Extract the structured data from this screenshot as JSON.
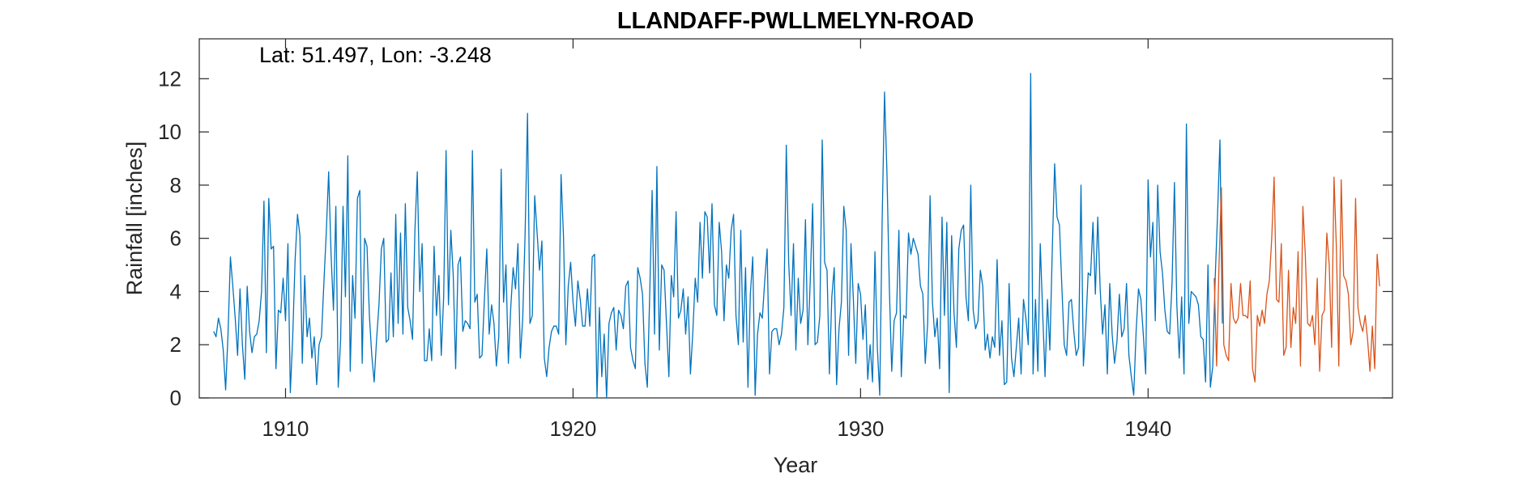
{
  "chart_data": {
    "type": "line",
    "title": "LLANDAFF-PWLLMELYN-ROAD",
    "annotation": "Lat: 51.497, Lon: -3.248",
    "xlabel": "Year",
    "ylabel": "Rainfall [inches]",
    "xlim": [
      1907.0,
      1948.5
    ],
    "ylim": [
      0,
      13.5
    ],
    "xticks": [
      1910,
      1920,
      1930,
      1940
    ],
    "yticks": [
      0,
      2,
      4,
      6,
      8,
      10,
      12
    ],
    "grid": false,
    "series": [
      {
        "color": "#0072BD",
        "x_start": 1907.5,
        "x_step": 0.083333,
        "values": [
          2.5,
          2.3,
          3.0,
          2.6,
          1.8,
          0.3,
          2.4,
          5.3,
          4.2,
          3.0,
          1.6,
          4.1,
          2.0,
          0.7,
          4.2,
          2.5,
          1.7,
          2.3,
          2.4,
          2.9,
          4.0,
          7.4,
          1.7,
          7.5,
          5.6,
          5.7,
          1.1,
          3.3,
          3.2,
          4.5,
          2.9,
          5.8,
          0.2,
          2.3,
          5.2,
          6.9,
          6.1,
          1.3,
          4.6,
          2.3,
          3.0,
          1.5,
          2.3,
          0.5,
          2.0,
          2.3,
          4.3,
          6.2,
          8.5,
          5.4,
          3.3,
          7.2,
          0.4,
          2.2,
          7.2,
          3.8,
          9.1,
          1.0,
          4.6,
          3.0,
          7.5,
          7.8,
          1.3,
          6.0,
          5.7,
          3.1,
          1.6,
          0.6,
          2.2,
          3.5,
          5.6,
          6.0,
          2.1,
          2.2,
          4.7,
          2.3,
          6.9,
          2.8,
          6.2,
          2.4,
          7.3,
          3.4,
          2.9,
          2.2,
          6.3,
          8.5,
          4.0,
          5.8,
          1.4,
          1.4,
          2.6,
          1.4,
          5.7,
          3.1,
          4.6,
          1.6,
          3.8,
          9.3,
          3.5,
          6.3,
          4.6,
          1.1,
          5.0,
          5.3,
          2.5,
          2.9,
          2.8,
          2.6,
          9.3,
          3.6,
          3.9,
          1.5,
          1.6,
          3.7,
          5.6,
          2.4,
          3.5,
          2.8,
          1.2,
          2.3,
          8.6,
          3.6,
          5.0,
          1.3,
          3.4,
          4.9,
          4.1,
          5.8,
          1.5,
          3.0,
          6.2,
          10.7,
          2.8,
          3.1,
          7.6,
          6.2,
          4.8,
          5.9,
          1.5,
          0.8,
          1.9,
          2.5,
          2.7,
          2.7,
          2.4,
          8.4,
          6.1,
          2.0,
          4.2,
          5.1,
          3.6,
          2.7,
          4.4,
          3.7,
          2.7,
          2.7,
          4.1,
          2.7,
          5.3,
          5.4,
          0.0,
          3.4,
          0.8,
          2.4,
          0.0,
          2.8,
          3.2,
          3.4,
          1.8,
          3.3,
          3.1,
          2.6,
          4.2,
          4.4,
          1.9,
          1.4,
          1.1,
          4.9,
          4.5,
          3.9,
          1.3,
          0.4,
          3.9,
          7.8,
          2.4,
          8.7,
          1.8,
          5.0,
          4.8,
          2.8,
          0.8,
          4.6,
          3.8,
          7.0,
          3.0,
          3.3,
          4.1,
          2.4,
          3.8,
          0.9,
          2.5,
          4.5,
          3.6,
          6.6,
          4.5,
          7.0,
          6.8,
          4.7,
          7.3,
          3.5,
          3.1,
          6.6,
          5.5,
          2.9,
          5.0,
          4.5,
          6.3,
          6.9,
          3.1,
          2.0,
          6.3,
          2.1,
          4.9,
          0.4,
          3.9,
          5.3,
          0.1,
          2.4,
          3.2,
          3.0,
          4.4,
          5.6,
          0.9,
          2.5,
          2.6,
          2.6,
          2.0,
          2.4,
          3.4,
          9.5,
          5.1,
          3.1,
          5.8,
          1.8,
          4.5,
          2.8,
          3.3,
          6.7,
          2.0,
          4.4,
          7.3,
          2.0,
          2.1,
          3.1,
          9.7,
          5.1,
          4.8,
          0.9,
          3.8,
          4.9,
          0.5,
          2.6,
          3.6,
          7.2,
          6.3,
          1.6,
          5.8,
          3.7,
          1.3,
          4.3,
          3.9,
          2.2,
          3.5,
          0.7,
          2.0,
          0.6,
          5.5,
          1.9,
          0.1,
          6.6,
          11.5,
          8.5,
          4.2,
          1.0,
          2.9,
          3.2,
          6.3,
          0.8,
          3.1,
          3.0,
          6.2,
          5.4,
          6.0,
          5.7,
          5.4,
          4.2,
          3.9,
          1.3,
          2.8,
          7.6,
          3.6,
          2.3,
          3.0,
          1.1,
          6.8,
          3.1,
          6.6,
          0.2,
          6.1,
          3.2,
          1.9,
          5.6,
          6.3,
          6.5,
          3.8,
          2.9,
          8.0,
          3.3,
          2.6,
          2.9,
          4.8,
          4.2,
          1.8,
          2.4,
          1.5,
          2.3,
          1.9,
          5.2,
          1.6,
          2.9,
          0.5,
          0.6,
          4.3,
          1.5,
          0.8,
          1.9,
          3.0,
          0.9,
          3.7,
          3.0,
          2.0,
          12.2,
          0.9,
          3.7,
          1.0,
          5.8,
          3.2,
          0.8,
          3.7,
          1.8,
          5.5,
          8.8,
          6.8,
          6.5,
          4.2,
          2.0,
          1.6,
          3.6,
          3.7,
          2.5,
          1.6,
          1.9,
          8.0,
          1.2,
          2.7,
          4.7,
          4.6,
          6.6,
          3.9,
          6.8,
          4.1,
          2.4,
          3.5,
          0.9,
          4.3,
          2.4,
          1.3,
          2.1,
          3.9,
          2.3,
          2.6,
          4.3,
          1.6,
          0.8,
          0.1,
          2.5,
          4.1,
          3.7,
          2.4,
          0.9,
          8.2,
          5.3,
          6.6,
          2.9,
          8.0,
          5.5,
          4.7,
          3.3,
          2.5,
          2.4,
          4.3,
          8.1,
          3.5,
          1.5,
          3.8,
          0.9,
          10.3,
          2.8,
          4.0,
          3.9,
          3.8,
          3.5,
          2.3,
          2.2,
          0.6,
          5.0,
          0.4,
          1.2,
          4.5,
          6.9,
          9.7,
          2.8
        ]
      },
      {
        "color": "#D95319",
        "x_start": 1942.3,
        "x_step": 0.083333,
        "values": [
          4.5,
          1.2,
          5.0,
          7.9,
          2.0,
          1.6,
          1.4,
          4.3,
          3.0,
          2.8,
          3.0,
          4.3,
          3.1,
          3.1,
          3.0,
          4.4,
          1.1,
          0.6,
          3.1,
          2.7,
          3.3,
          2.8,
          3.9,
          4.4,
          6.0,
          8.3,
          3.7,
          3.6,
          5.8,
          1.6,
          1.9,
          4.8,
          1.9,
          3.4,
          2.8,
          5.5,
          1.2,
          7.2,
          5.4,
          2.8,
          2.7,
          3.1,
          2.0,
          4.5,
          1.0,
          3.1,
          3.3,
          6.2,
          5.0,
          1.9,
          8.3,
          5.6,
          1.2,
          8.2,
          4.6,
          4.4,
          3.9,
          2.0,
          2.5,
          7.5,
          3.4,
          2.8,
          2.5,
          3.1,
          2.2,
          1.0,
          2.7,
          1.1,
          5.4,
          4.2
        ]
      }
    ]
  }
}
